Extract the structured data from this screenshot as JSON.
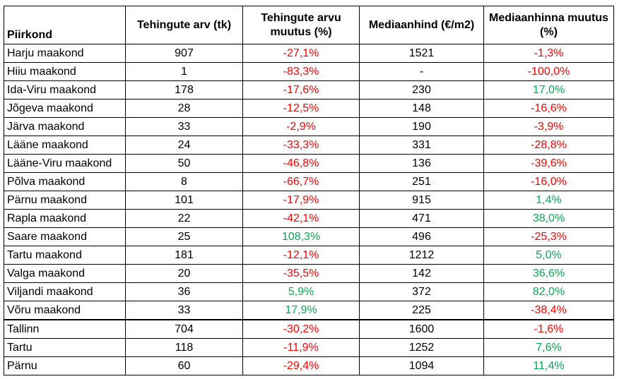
{
  "colors": {
    "negative": "#ff0000",
    "positive": "#00b050"
  },
  "headers": [
    "Piirkond",
    "Tehingute arv (tk)",
    "Tehingute arvu muutus (%)",
    "Mediaanhind (€/m2)",
    "Mediaanhinna muutus (%)"
  ],
  "rows": [
    {
      "region": "Harju maakond",
      "count": "907",
      "count_change": "-27,1%",
      "count_change_sign": "neg",
      "median": "1521",
      "median_change": "-1,3%",
      "median_change_sign": "neg"
    },
    {
      "region": "Hiiu maakond",
      "count": "1",
      "count_change": "-83,3%",
      "count_change_sign": "neg",
      "median": "-",
      "median_change": "-100,0%",
      "median_change_sign": "neg"
    },
    {
      "region": "Ida-Viru maakond",
      "count": "178",
      "count_change": "-17,6%",
      "count_change_sign": "neg",
      "median": "230",
      "median_change": "17,0%",
      "median_change_sign": "pos"
    },
    {
      "region": "Jõgeva maakond",
      "count": "28",
      "count_change": "-12,5%",
      "count_change_sign": "neg",
      "median": "148",
      "median_change": "-16,6%",
      "median_change_sign": "neg"
    },
    {
      "region": "Järva maakond",
      "count": "33",
      "count_change": "-2,9%",
      "count_change_sign": "neg",
      "median": "190",
      "median_change": "-3,9%",
      "median_change_sign": "neg"
    },
    {
      "region": "Lääne maakond",
      "count": "24",
      "count_change": "-33,3%",
      "count_change_sign": "neg",
      "median": "331",
      "median_change": "-28,8%",
      "median_change_sign": "neg"
    },
    {
      "region": "Lääne-Viru maakond",
      "count": "50",
      "count_change": "-46,8%",
      "count_change_sign": "neg",
      "median": "136",
      "median_change": "-39,6%",
      "median_change_sign": "neg"
    },
    {
      "region": "Põlva maakond",
      "count": "8",
      "count_change": "-66,7%",
      "count_change_sign": "neg",
      "median": "251",
      "median_change": "-16,0%",
      "median_change_sign": "neg"
    },
    {
      "region": "Pärnu maakond",
      "count": "101",
      "count_change": "-17,9%",
      "count_change_sign": "neg",
      "median": "915",
      "median_change": "1,4%",
      "median_change_sign": "pos"
    },
    {
      "region": "Rapla maakond",
      "count": "22",
      "count_change": "-42,1%",
      "count_change_sign": "neg",
      "median": "471",
      "median_change": "38,0%",
      "median_change_sign": "pos"
    },
    {
      "region": "Saare maakond",
      "count": "25",
      "count_change": "108,3%",
      "count_change_sign": "pos",
      "median": "496",
      "median_change": "-25,3%",
      "median_change_sign": "neg"
    },
    {
      "region": "Tartu maakond",
      "count": "181",
      "count_change": "-12,1%",
      "count_change_sign": "neg",
      "median": "1212",
      "median_change": "5,0%",
      "median_change_sign": "pos"
    },
    {
      "region": "Valga maakond",
      "count": "20",
      "count_change": "-35,5%",
      "count_change_sign": "neg",
      "median": "142",
      "median_change": "36,6%",
      "median_change_sign": "pos"
    },
    {
      "region": "Viljandi maakond",
      "count": "36",
      "count_change": "5,9%",
      "count_change_sign": "pos",
      "median": "372",
      "median_change": "82,0%",
      "median_change_sign": "pos"
    },
    {
      "region": "Võru maakond",
      "count": "33",
      "count_change": "17,9%",
      "count_change_sign": "pos",
      "median": "225",
      "median_change": "-38,4%",
      "median_change_sign": "neg"
    },
    {
      "region": "Tallinn",
      "count": "704",
      "count_change": "-30,2%",
      "count_change_sign": "neg",
      "median": "1600",
      "median_change": "-1,6%",
      "median_change_sign": "neg"
    },
    {
      "region": "Tartu",
      "count": "118",
      "count_change": "-11,9%",
      "count_change_sign": "neg",
      "median": "1252",
      "median_change": "7,6%",
      "median_change_sign": "pos"
    },
    {
      "region": "Pärnu",
      "count": "60",
      "count_change": "-29,4%",
      "count_change_sign": "neg",
      "median": "1094",
      "median_change": "11,4%",
      "median_change_sign": "pos"
    }
  ]
}
